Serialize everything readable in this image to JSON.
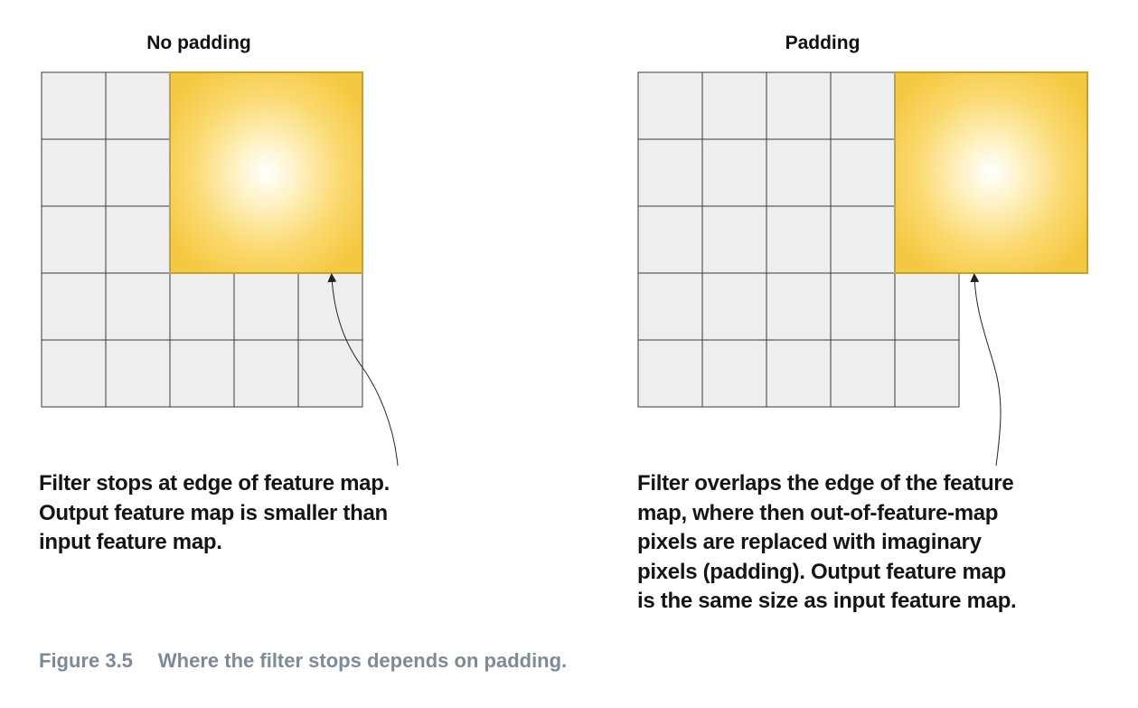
{
  "panels": {
    "left": {
      "title": "No padding",
      "caption_lines": [
        "Filter stops at edge of feature map.",
        "Output feature map is smaller than",
        "input feature map."
      ]
    },
    "right": {
      "title": "Padding",
      "caption_lines": [
        "Filter overlaps the edge of the feature",
        "map, where then out-of-feature-map",
        "pixels are replaced with imaginary",
        "pixels (padding). Output feature map",
        "is the same size as input feature map."
      ]
    }
  },
  "figure": {
    "number": "Figure 3.5",
    "caption": "Where the filter stops depends on padding."
  },
  "colors": {
    "cell_fill": "#eeeeee",
    "cell_stroke": "#3a3a3a",
    "filter_center": "#ffffff",
    "filter_edge": "#f5c842",
    "filter_stroke": "#c9a227",
    "figure_caption": "#7d8b96"
  }
}
